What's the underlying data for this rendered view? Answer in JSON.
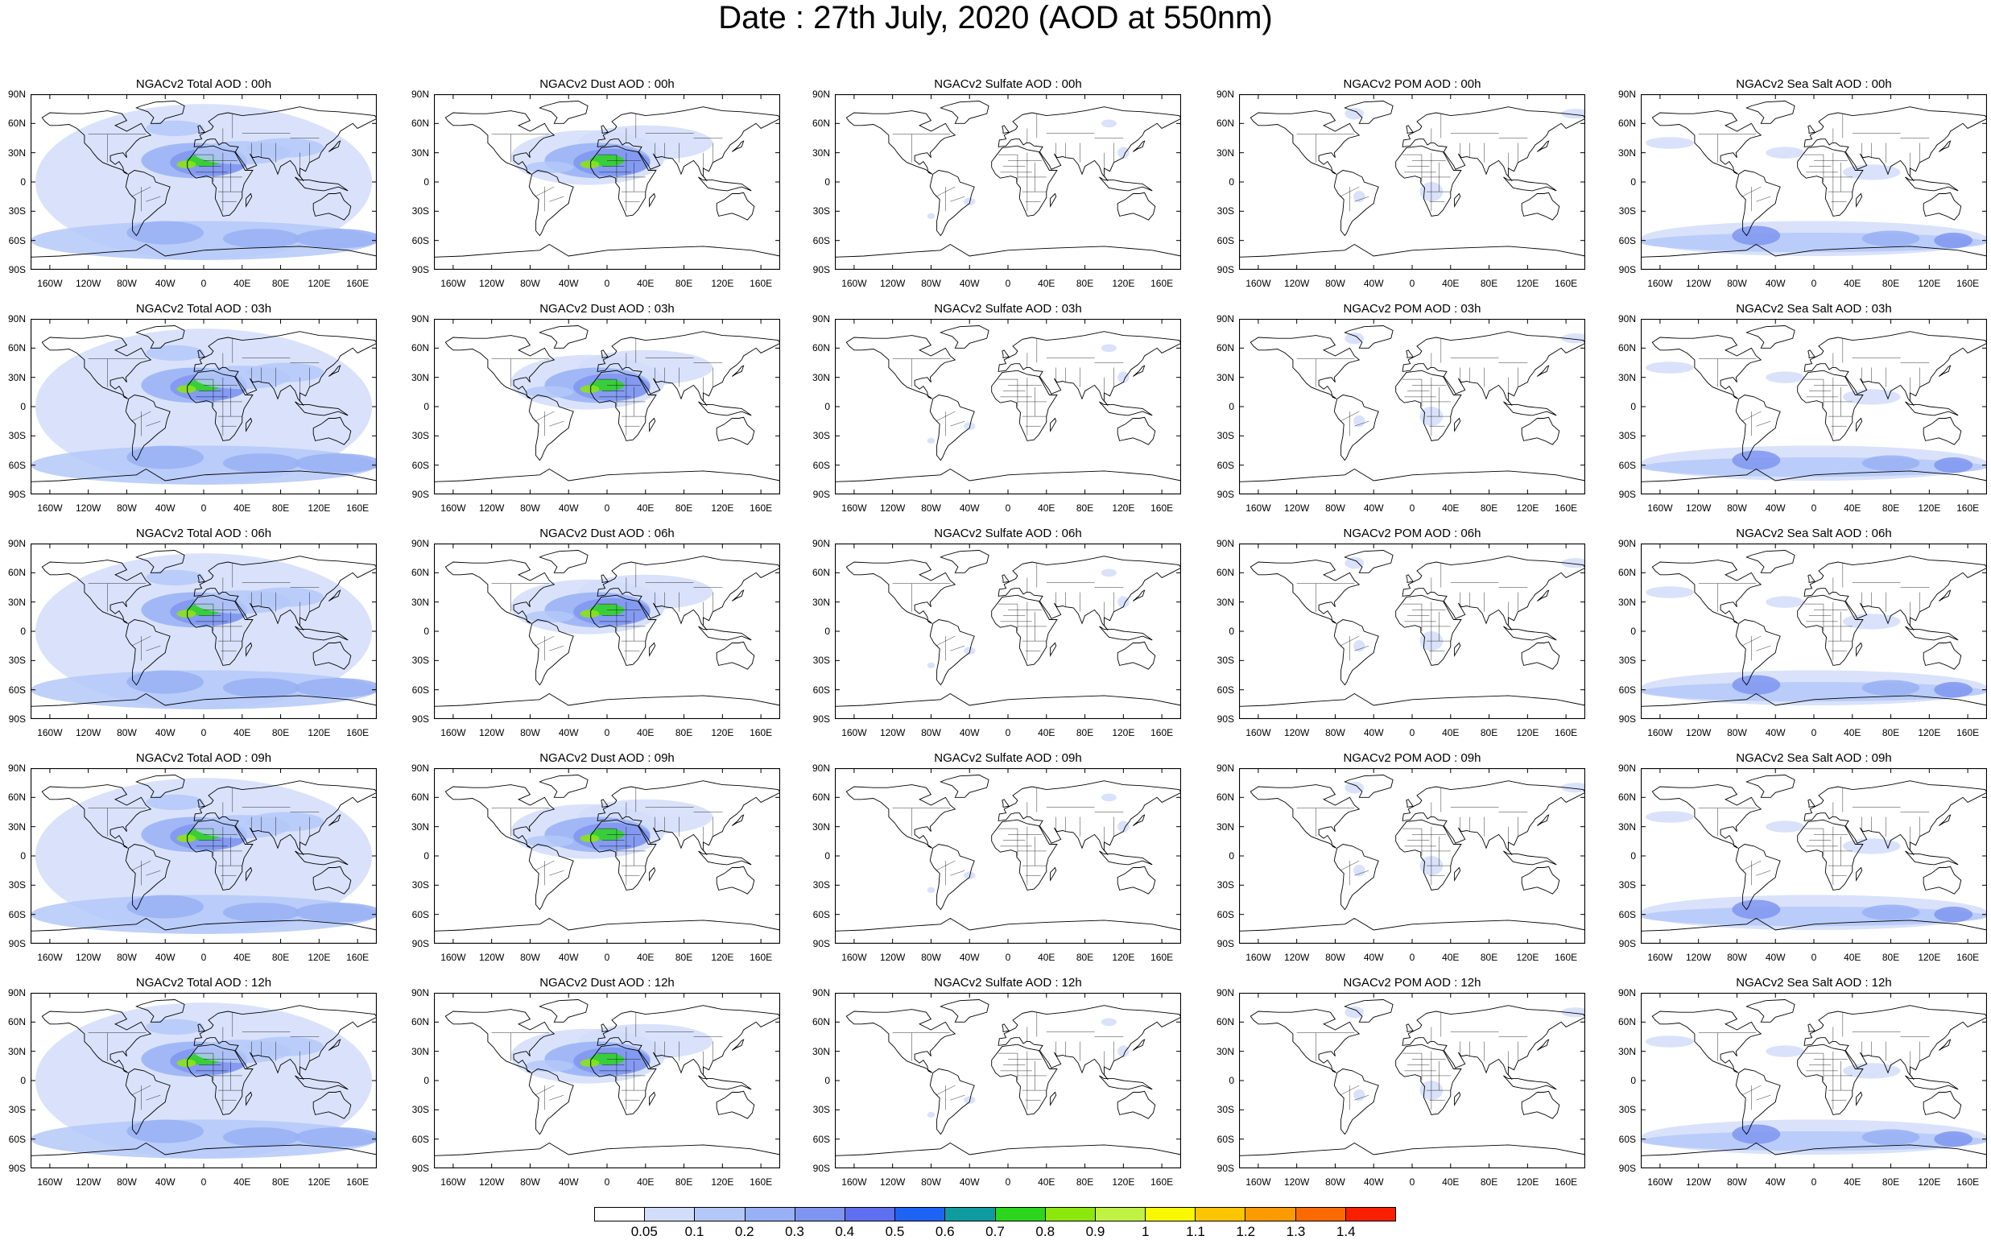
{
  "title": "Date : 27th July, 2020 (AOD at 550nm)",
  "lat_labels": [
    "90N",
    "60N",
    "30N",
    "0",
    "30S",
    "60S",
    "90S"
  ],
  "lon_labels": [
    "160W",
    "120W",
    "80W",
    "40W",
    "0",
    "40E",
    "80E",
    "120E",
    "160E"
  ],
  "rows": [
    [
      "NGACv2 Total AOD : 00h",
      "NGACv2 Dust AOD : 00h",
      "NGACv2 Sulfate AOD : 00h",
      "NGACv2 POM AOD : 00h",
      "NGACv2 Sea Salt AOD : 00h"
    ],
    [
      "NGACv2 Total AOD : 03h",
      "NGACv2 Dust AOD : 03h",
      "NGACv2 Sulfate AOD : 03h",
      "NGACv2 POM AOD : 03h",
      "NGACv2 Sea Salt AOD : 03h"
    ],
    [
      "NGACv2 Total AOD : 06h",
      "NGACv2 Dust AOD : 06h",
      "NGACv2 Sulfate AOD : 06h",
      "NGACv2 POM AOD : 06h",
      "NGACv2 Sea Salt AOD : 06h"
    ],
    [
      "NGACv2 Total AOD : 09h",
      "NGACv2 Dust AOD : 09h",
      "NGACv2 Sulfate AOD : 09h",
      "NGACv2 POM AOD : 09h",
      "NGACv2 Sea Salt  AOD : 09h"
    ],
    [
      "NGACv2 Total AOD : 12h",
      "NGACv2 Dust AOD : 12h",
      "NGACv2 Sulfate AOD : 12h",
      "NGACv2 POM  AOD : 12h",
      "NGACv2 Sea Salt AOD : 12h"
    ]
  ],
  "colorbar": {
    "labels": [
      "0.05",
      "0.1",
      "0.2",
      "0.3",
      "0.4",
      "0.5",
      "0.6",
      "0.7",
      "0.8",
      "0.9",
      "1",
      "1.1",
      "1.2",
      "1.3",
      "1.4"
    ],
    "colors": [
      "#ffffff",
      "#d2ddf9",
      "#b4c8f8",
      "#98b0f5",
      "#7f95f0",
      "#5f6ff0",
      "#1f63f5",
      "#0f9c9f",
      "#2bd61c",
      "#8ce70c",
      "#c0f244",
      "#f8f800",
      "#fcc500",
      "#fd9a00",
      "#fb6a00",
      "#f82000"
    ]
  },
  "fields": {
    "total": [
      "Africa–Atlantic dust plume (green core)",
      "global light-blue background",
      "Southern Ocean storm belt"
    ],
    "dust": [
      "Africa–Atlantic dust plume (green core)",
      "Asian dust band"
    ],
    "sulfate": [
      "sparse light patches",
      "East Asia"
    ],
    "pom": [
      "Central/Southern Africa biomass burning",
      "South America"
    ],
    "seasalt": [
      "Southern Ocean band (blue)",
      "scattered ocean patches"
    ]
  }
}
